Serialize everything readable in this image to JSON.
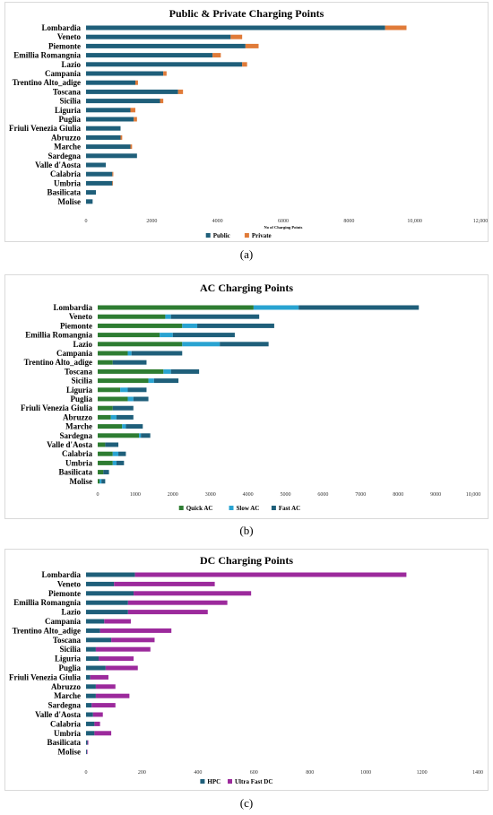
{
  "captions": [
    "(a)",
    "(b)",
    "(c)"
  ],
  "chart_data": [
    {
      "type": "bar",
      "orientation": "horizontal",
      "stacked": true,
      "title": "Public & Private Charging Points",
      "xlabel": "No of Charging Points",
      "xlim": [
        0,
        12000
      ],
      "xticks": [
        "0",
        "2000",
        "4000",
        "6000",
        "8000",
        "10,000",
        "12,000"
      ],
      "legend_position": "bottom",
      "categories": [
        "Lombardia",
        "Veneto",
        "Piemonte",
        "Emillia Romangnia",
        "Lazio",
        "Campania",
        "Trentino Alto_adige",
        "Toscana",
        "Sicilia",
        "Liguria",
        "Puglia",
        "Friuli Venezia Giulia",
        "Abruzzo",
        "Marche",
        "Sardegna",
        "Valle d'Aosta",
        "Calabria",
        "Umbria",
        "Basilicata",
        "Molise"
      ],
      "series": [
        {
          "name": "Public",
          "color": "#1f5f7a",
          "values": [
            9100,
            4400,
            4850,
            3850,
            4750,
            2350,
            1500,
            2800,
            2250,
            1350,
            1450,
            1050,
            1050,
            1350,
            1550,
            600,
            800,
            800,
            300,
            200
          ]
        },
        {
          "name": "Private",
          "color": "#e07b39",
          "values": [
            650,
            350,
            400,
            250,
            150,
            100,
            80,
            150,
            100,
            150,
            100,
            0,
            50,
            50,
            0,
            0,
            30,
            20,
            0,
            0
          ]
        }
      ]
    },
    {
      "type": "bar",
      "orientation": "horizontal",
      "stacked": true,
      "title": "AC Charging Points",
      "xlim": [
        0,
        10000
      ],
      "xticks": [
        "0",
        "1000",
        "2000",
        "3000",
        "4000",
        "5000",
        "6000",
        "7000",
        "8000",
        "9000",
        "10,000"
      ],
      "legend_position": "bottom",
      "categories": [
        "Lombardia",
        "Veneto",
        "Piemonte",
        "Emillia Romangnia",
        "Lazio",
        "Campania",
        "Trentino Alto_adige",
        "Toscana",
        "Sicilia",
        "Liguria",
        "Puglia",
        "Friuli Venezia Giulia",
        "Abruzzo",
        "Marche",
        "Sardegna",
        "Valle d'Aosta",
        "Calabria",
        "Umbria",
        "Basilicata",
        "Molise"
      ],
      "series": [
        {
          "name": "Quick  AC",
          "color": "#2e7d32",
          "values": [
            4150,
            1800,
            2250,
            1650,
            2250,
            800,
            400,
            1750,
            1350,
            600,
            800,
            400,
            350,
            650,
            1100,
            200,
            400,
            400,
            150,
            50
          ]
        },
        {
          "name": "Slow AC",
          "color": "#29a3d1",
          "values": [
            1200,
            150,
            400,
            350,
            1000,
            100,
            0,
            200,
            150,
            200,
            150,
            0,
            150,
            100,
            50,
            0,
            150,
            100,
            0,
            50
          ]
        },
        {
          "name": "Fast AC",
          "color": "#1f5f7a",
          "values": [
            3200,
            2350,
            2050,
            1650,
            1300,
            1350,
            900,
            750,
            650,
            500,
            400,
            550,
            450,
            450,
            250,
            350,
            200,
            200,
            150,
            100
          ]
        }
      ]
    },
    {
      "type": "bar",
      "orientation": "horizontal",
      "stacked": true,
      "title": "DC Charging Points",
      "xlim": [
        0,
        1400
      ],
      "xticks": [
        "0",
        "200",
        "400",
        "600",
        "800",
        "1000",
        "1200",
        "1400"
      ],
      "legend_position": "bottom",
      "categories": [
        "Lombardia",
        "Veneto",
        "Piemonte",
        "Emillia Romangnia",
        "Lazio",
        "Campania",
        "Trentino Alto_adige",
        "Toscana",
        "Sicilia",
        "Liguria",
        "Puglia",
        "Friuli Venezia Giulia",
        "Abruzzo",
        "Marche",
        "Sardegna",
        "Valle d'Aosta",
        "Calabria",
        "Umbria",
        "Basilicata",
        "Molise"
      ],
      "series": [
        {
          "name": "HPC",
          "color": "#1f5f7a",
          "values": [
            175,
            100,
            170,
            150,
            150,
            65,
            50,
            90,
            35,
            45,
            70,
            15,
            35,
            35,
            20,
            25,
            30,
            30,
            5,
            3
          ]
        },
        {
          "name": "Ultra Fast DC",
          "color": "#9c2a9c",
          "values": [
            970,
            360,
            420,
            355,
            285,
            95,
            255,
            155,
            195,
            125,
            115,
            65,
            70,
            120,
            85,
            35,
            20,
            60,
            3,
            2
          ]
        }
      ]
    }
  ]
}
